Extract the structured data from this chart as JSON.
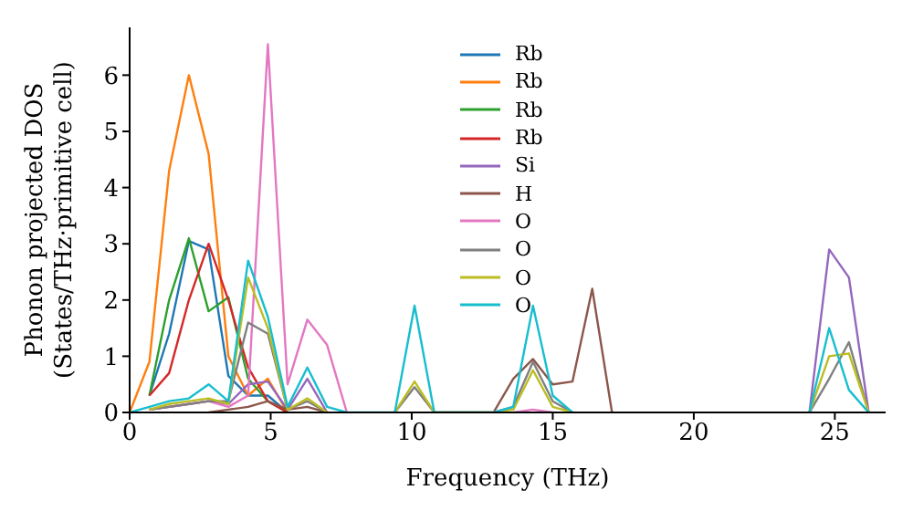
{
  "chart_data": {
    "type": "line",
    "xlabel": "Frequency (THz)",
    "ylabel": "Phonon projected DOS\n(States/THz·primitive cell)",
    "x": [
      0,
      0.7,
      1.4,
      2.1,
      2.8,
      3.5,
      4.2,
      4.9,
      5.6,
      6.3,
      7.0,
      7.7,
      9.4,
      10.1,
      10.8,
      12.9,
      13.6,
      14.3,
      15.0,
      15.7,
      16.4,
      17.1,
      24.1,
      24.8,
      25.5,
      26.2
    ],
    "xlim": [
      0,
      26.8
    ],
    "xticks": [
      0,
      5,
      10,
      15,
      20,
      25
    ],
    "ylim": [
      0,
      6.85
    ],
    "yticks": [
      0,
      1,
      2,
      3,
      4,
      5,
      6
    ],
    "legend": "top",
    "series": [
      {
        "name": "Rb",
        "color": "#1f77b4",
        "values": [
          null,
          0.3,
          1.4,
          3.05,
          2.9,
          0.65,
          0.3,
          0.3,
          0,
          null,
          null,
          null,
          null,
          null,
          null,
          null,
          null,
          null,
          null,
          null,
          null,
          null,
          null,
          null,
          null,
          null
        ]
      },
      {
        "name": "Rb",
        "color": "#ff7f0e",
        "values": [
          0,
          0.9,
          4.3,
          6.0,
          4.6,
          1.0,
          0.3,
          0.6,
          0,
          null,
          null,
          null,
          null,
          null,
          null,
          null,
          null,
          null,
          null,
          null,
          null,
          null,
          null,
          null,
          null,
          null
        ]
      },
      {
        "name": "Rb",
        "color": "#2ca02c",
        "values": [
          null,
          0.3,
          2.0,
          3.1,
          1.8,
          2.05,
          0.6,
          0.2,
          0,
          null,
          null,
          null,
          null,
          null,
          null,
          null,
          null,
          null,
          null,
          null,
          null,
          null,
          null,
          null,
          null,
          null
        ]
      },
      {
        "name": "Rb",
        "color": "#d62728",
        "values": [
          null,
          0.3,
          0.7,
          2.0,
          3.0,
          2.0,
          0.8,
          0.2,
          0,
          null,
          null,
          null,
          null,
          null,
          null,
          null,
          null,
          null,
          null,
          null,
          null,
          null,
          null,
          null,
          null,
          null
        ]
      },
      {
        "name": "Si",
        "color": "#9467bd",
        "values": [
          null,
          0.05,
          0.1,
          0.15,
          0.2,
          0.15,
          0.5,
          0.55,
          0.05,
          0.6,
          0,
          null,
          null,
          null,
          null,
          null,
          null,
          null,
          null,
          null,
          null,
          null,
          0,
          2.9,
          2.4,
          0
        ]
      },
      {
        "name": "H",
        "color": "#8c564b",
        "values": [
          null,
          null,
          null,
          null,
          0,
          0.05,
          0.1,
          0.2,
          0.05,
          0.1,
          0,
          null,
          null,
          null,
          null,
          0,
          0.6,
          0.95,
          0.5,
          0.55,
          2.2,
          0,
          null,
          null,
          null,
          null
        ]
      },
      {
        "name": "O",
        "color": "#e377c2",
        "values": [
          null,
          0.05,
          0.1,
          0.15,
          0.2,
          0.1,
          0.3,
          6.55,
          0.5,
          1.65,
          1.2,
          0,
          null,
          null,
          null,
          null,
          0,
          0.05,
          0,
          null,
          null,
          null,
          null,
          null,
          null,
          null
        ]
      },
      {
        "name": "O",
        "color": "#7f7f7f",
        "values": [
          null,
          0.05,
          0.1,
          0.15,
          0.2,
          0.2,
          1.6,
          1.4,
          0.05,
          0.2,
          0,
          null,
          0,
          0.45,
          0,
          0,
          0.1,
          0.9,
          0.2,
          0,
          null,
          null,
          0,
          0.6,
          1.25,
          0
        ]
      },
      {
        "name": "O",
        "color": "#bcbd22",
        "values": [
          null,
          0.05,
          0.15,
          0.2,
          0.25,
          0.15,
          2.4,
          1.5,
          0.05,
          0.25,
          0,
          null,
          0,
          0.55,
          0,
          0,
          0.05,
          0.75,
          0.1,
          0,
          null,
          null,
          0,
          1.0,
          1.05,
          0
        ]
      },
      {
        "name": "O",
        "color": "#17becf",
        "values": [
          0,
          0.1,
          0.2,
          0.25,
          0.5,
          0.2,
          2.7,
          1.7,
          0.1,
          0.8,
          0.1,
          0,
          0,
          1.9,
          0,
          0,
          0.1,
          1.9,
          0.3,
          0,
          null,
          null,
          0,
          1.5,
          0.4,
          0
        ]
      }
    ]
  }
}
